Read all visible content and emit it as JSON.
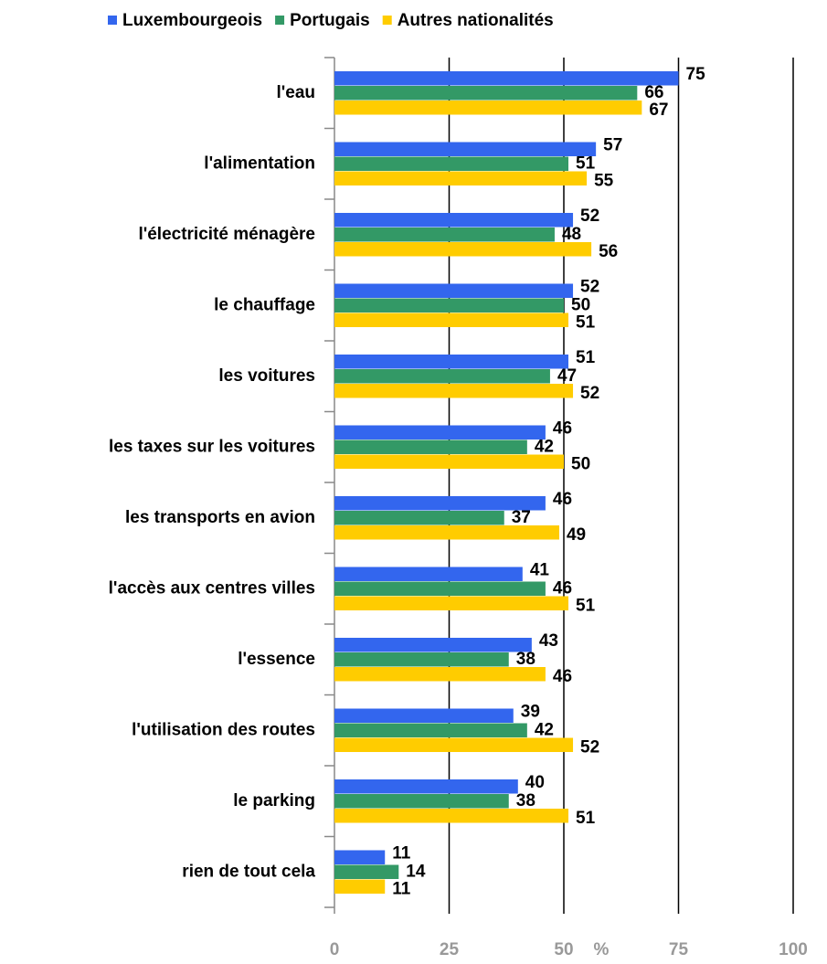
{
  "chart_data": {
    "type": "bar",
    "orientation": "horizontal",
    "categories": [
      "l'eau",
      "l'alimentation",
      "l'électricité ménagère",
      "le chauffage",
      "les voitures",
      "les taxes sur les voitures",
      "les transports en avion",
      "l'accès aux centres villes",
      "l'essence",
      "l'utilisation des routes",
      "le parking",
      "rien de tout cela"
    ],
    "series": [
      {
        "name": "Luxembourgeois",
        "color": "#3366ee",
        "values": [
          75,
          57,
          52,
          52,
          51,
          46,
          46,
          41,
          43,
          39,
          40,
          11
        ]
      },
      {
        "name": "Portugais",
        "color": "#339966",
        "values": [
          66,
          51,
          48,
          50,
          47,
          42,
          37,
          46,
          38,
          42,
          38,
          14
        ]
      },
      {
        "name": "Autres nationalités",
        "color": "#ffcc00",
        "values": [
          67,
          55,
          56,
          51,
          52,
          50,
          49,
          51,
          46,
          52,
          51,
          11
        ]
      }
    ],
    "x_label": "%",
    "xlim": [
      0,
      100
    ],
    "xticks": [
      0,
      25,
      50,
      75,
      100
    ],
    "grid": true,
    "legend": "top"
  }
}
